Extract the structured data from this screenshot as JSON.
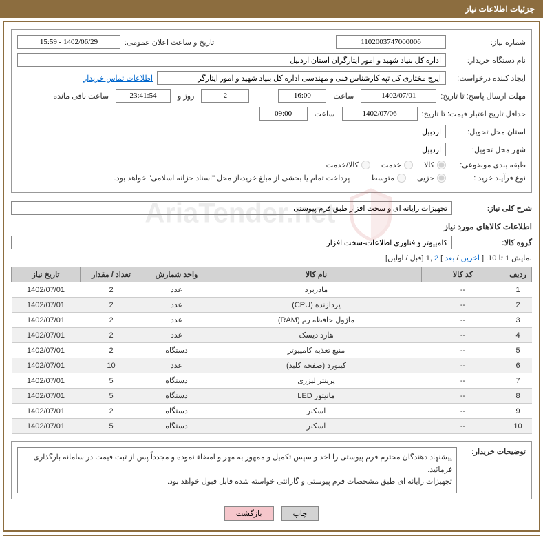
{
  "header": {
    "title": "جزئیات اطلاعات نیاز"
  },
  "form": {
    "need_no_label": "شماره نیاز:",
    "need_no": "1102003747000006",
    "announce_label": "تاریخ و ساعت اعلان عمومی:",
    "announce_value": "1402/06/29 - 15:59",
    "buyer_label": "نام دستگاه خریدار:",
    "buyer_value": "اداره کل بنیاد شهید و امور ایثارگران استان اردبیل",
    "creator_label": "ایجاد کننده درخواست:",
    "creator_value": "ایرج مختاری کل تپه کارشناس فنی و مهندسی اداره کل بنیاد شهید و امور ایثارگر",
    "contact_link": "اطلاعات تماس خریدار",
    "deadline_label": "مهلت ارسال پاسخ: تا تاریخ:",
    "deadline_date": "1402/07/01",
    "time_label": "ساعت",
    "deadline_time": "16:00",
    "days_count": "2",
    "days_text": "روز و",
    "countdown": "23:41:54",
    "remaining_text": "ساعت باقی مانده",
    "validity_label": "حداقل تاریخ اعتبار قیمت: تا تاریخ:",
    "validity_date": "1402/07/06",
    "validity_time": "09:00",
    "province_label": "استان محل تحویل:",
    "province_value": "اردبیل",
    "city_label": "شهر محل تحویل:",
    "city_value": "اردبیل",
    "category_label": "طبقه بندی موضوعی:",
    "cat_opt1": "کالا",
    "cat_opt2": "خدمت",
    "cat_opt3": "کالا/خدمت",
    "process_label": "نوع فرآیند خرید :",
    "proc_opt1": "جزیی",
    "proc_opt2": "متوسط",
    "process_note": "پرداخت تمام یا بخشی از مبلغ خرید،از محل \"اسناد خزانه اسلامی\" خواهد بود."
  },
  "overall": {
    "label": "شرح کلی نیاز:",
    "value": "تجهیزات رایانه ای و سخت افزار طبق فرم پیوستی"
  },
  "goods_section_title": "اطلاعات کالاهای مورد نیاز",
  "group": {
    "label": "گروه کالا:",
    "value": "کامپیوتر و فناوری اطلاعات-سخت افزار"
  },
  "pagination": {
    "text_prefix": "نمایش 1 تا 10. [ ",
    "last": "آخرین",
    "sep1": " / ",
    "next": "بعد",
    "sep2": " ] ",
    "p2": "2",
    "comma": " ,",
    "p1": "1",
    "suffix": " [قبل / اولین]"
  },
  "table": {
    "headers": [
      "ردیف",
      "کد کالا",
      "نام کالا",
      "واحد شمارش",
      "تعداد / مقدار",
      "تاریخ نیاز"
    ],
    "col_widths": [
      "40px",
      "120px",
      "auto",
      "100px",
      "90px",
      "100px"
    ],
    "rows": [
      [
        "1",
        "--",
        "مادربرد",
        "عدد",
        "2",
        "1402/07/01"
      ],
      [
        "2",
        "--",
        "پردازنده (CPU)",
        "عدد",
        "2",
        "1402/07/01"
      ],
      [
        "3",
        "--",
        "ماژول حافظه رم (RAM)",
        "عدد",
        "2",
        "1402/07/01"
      ],
      [
        "4",
        "--",
        "هارد دیسک",
        "عدد",
        "2",
        "1402/07/01"
      ],
      [
        "5",
        "--",
        "منبع تغذیه کامپیوتر",
        "دستگاه",
        "2",
        "1402/07/01"
      ],
      [
        "6",
        "--",
        "کیبورد (صفحه کلید)",
        "عدد",
        "10",
        "1402/07/01"
      ],
      [
        "7",
        "--",
        "پرینتر لیزری",
        "دستگاه",
        "5",
        "1402/07/01"
      ],
      [
        "8",
        "--",
        "مانیتور LED",
        "دستگاه",
        "5",
        "1402/07/01"
      ],
      [
        "9",
        "--",
        "اسکنر",
        "دستگاه",
        "2",
        "1402/07/01"
      ],
      [
        "10",
        "--",
        "اسکنر",
        "دستگاه",
        "5",
        "1402/07/01"
      ]
    ]
  },
  "description": {
    "label": "توضیحات خریدار:",
    "line1": "پیشنهاد دهندگان محترم فرم پیوستی را اخذ و سپس تکمیل و ممهور به مهر و امضاء نموده و مجدداً پس از ثبت قیمت در سامانه بارگذاری فرمائید.",
    "line2": "تجهیزات رایانه ای طبق مشخصات فرم پیوستی و گارانتی خواسته شده قابل قبول خواهد بود."
  },
  "buttons": {
    "print": "چاپ",
    "back": "بازگشت"
  },
  "colors": {
    "header_bg": "#8c6d3f",
    "table_header_bg": "#d3d3d3",
    "link": "#0066cc",
    "btn_back_bg": "#f5c6cb"
  }
}
